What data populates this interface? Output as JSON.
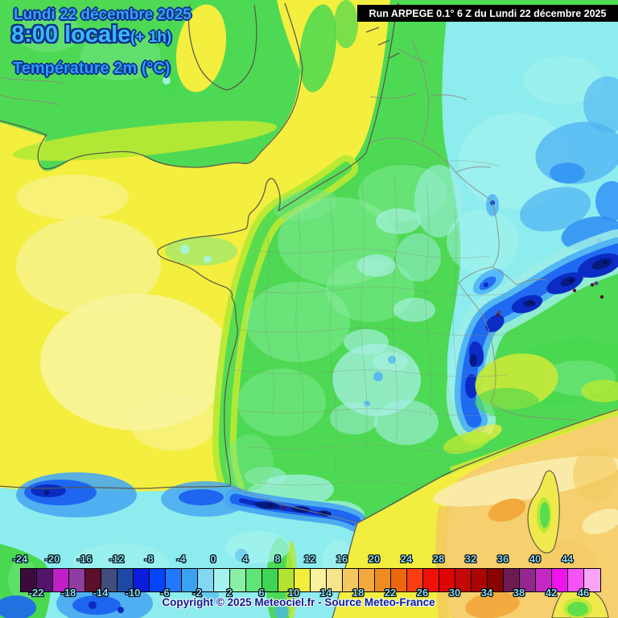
{
  "header": {
    "date_line": "Lundi 22 décembre 2025",
    "time_line": "8:00 locale",
    "time_offset": "(+ 1h)",
    "variable_label": "Température 2m (°C)"
  },
  "run_banner": {
    "text": "Run ARPEGE 0.1° 6 Z du Lundi 22 décembre 2025",
    "bg": "#000000",
    "fg": "#ffffff"
  },
  "footer": {
    "copyright": "Copyright © 2025 Meteociel.fr - Source Meteo-France"
  },
  "map": {
    "kind": "2m temperature field, ARPEGE model, France and neighbours",
    "key_colors": {
      "mild_sea_yellow": "#f4ee3e",
      "pale_yellow": "#f8f49b",
      "chartreuse_fringe": "#b6e934",
      "land_green": "#4ed954",
      "light_green": "#74e683",
      "pale_green": "#8ff0a4",
      "cold_cyan": "#8deced",
      "pale_cyan": "#a7f4ee",
      "light_blue": "#4fb2f4",
      "blue": "#1e66f0",
      "navy": "#0a2cc4",
      "dark_navy": "#051a80",
      "alps_maroon_speck": "#5c0e2b",
      "warm_sea_tan": "#f6cf6f",
      "cream_band": "#f9ecaa",
      "gold": "#f3c95f",
      "orange_patch": "#f2a93c",
      "coastline_gray": "#57564c"
    }
  },
  "colorbar": {
    "unit": "°C",
    "min": -24,
    "max": 48,
    "step": 2,
    "top_labels": [
      -24,
      -20,
      -16,
      -12,
      -8,
      -4,
      0,
      4,
      8,
      12,
      16,
      20,
      24,
      28,
      32,
      36,
      40,
      44
    ],
    "bottom_labels": [
      -22,
      -18,
      -14,
      -10,
      -6,
      -2,
      2,
      6,
      10,
      14,
      18,
      22,
      26,
      30,
      34,
      38,
      42,
      46
    ],
    "cells": [
      {
        "from": -24,
        "to": -22,
        "color": "#3d0a3d"
      },
      {
        "from": -22,
        "to": -20,
        "color": "#52156b"
      },
      {
        "from": -20,
        "to": -18,
        "color": "#bf1fc6"
      },
      {
        "from": -18,
        "to": -16,
        "color": "#8f3da1"
      },
      {
        "from": -16,
        "to": -14,
        "color": "#5c0e2b"
      },
      {
        "from": -14,
        "to": -12,
        "color": "#424d7c"
      },
      {
        "from": -12,
        "to": -10,
        "color": "#1c4aa2"
      },
      {
        "from": -10,
        "to": -8,
        "color": "#0a1cdc"
      },
      {
        "from": -8,
        "to": -6,
        "color": "#0345ff"
      },
      {
        "from": -6,
        "to": -4,
        "color": "#2277fa"
      },
      {
        "from": -4,
        "to": -2,
        "color": "#3ba2f2"
      },
      {
        "from": -2,
        "to": 0,
        "color": "#83d7f3"
      },
      {
        "from": 0,
        "to": 2,
        "color": "#a5f3ef"
      },
      {
        "from": 2,
        "to": 4,
        "color": "#89efa5"
      },
      {
        "from": 4,
        "to": 6,
        "color": "#5fe476"
      },
      {
        "from": 6,
        "to": 8,
        "color": "#3fd455"
      },
      {
        "from": 8,
        "to": 10,
        "color": "#b2e232"
      },
      {
        "from": 10,
        "to": 12,
        "color": "#f2ee3c"
      },
      {
        "from": 12,
        "to": 14,
        "color": "#f8f49e"
      },
      {
        "from": 14,
        "to": 16,
        "color": "#f5e48c"
      },
      {
        "from": 16,
        "to": 18,
        "color": "#f3c95f"
      },
      {
        "from": 18,
        "to": 20,
        "color": "#f2a93c"
      },
      {
        "from": 20,
        "to": 22,
        "color": "#ee8c1f"
      },
      {
        "from": 22,
        "to": 24,
        "color": "#ec660d"
      },
      {
        "from": 24,
        "to": 26,
        "color": "#fa3c12"
      },
      {
        "from": 26,
        "to": 28,
        "color": "#f01008"
      },
      {
        "from": 28,
        "to": 30,
        "color": "#de0404"
      },
      {
        "from": 30,
        "to": 32,
        "color": "#c40808"
      },
      {
        "from": 32,
        "to": 34,
        "color": "#ac0404"
      },
      {
        "from": 34,
        "to": 36,
        "color": "#8a0303"
      },
      {
        "from": 36,
        "to": 38,
        "color": "#6d1a52"
      },
      {
        "from": 38,
        "to": 40,
        "color": "#93278f"
      },
      {
        "from": 40,
        "to": 42,
        "color": "#c427c4"
      },
      {
        "from": 42,
        "to": 44,
        "color": "#ef13ef"
      },
      {
        "from": 44,
        "to": 46,
        "color": "#f553f5"
      },
      {
        "from": 46,
        "to": 48,
        "color": "#f9a3f9"
      }
    ]
  }
}
